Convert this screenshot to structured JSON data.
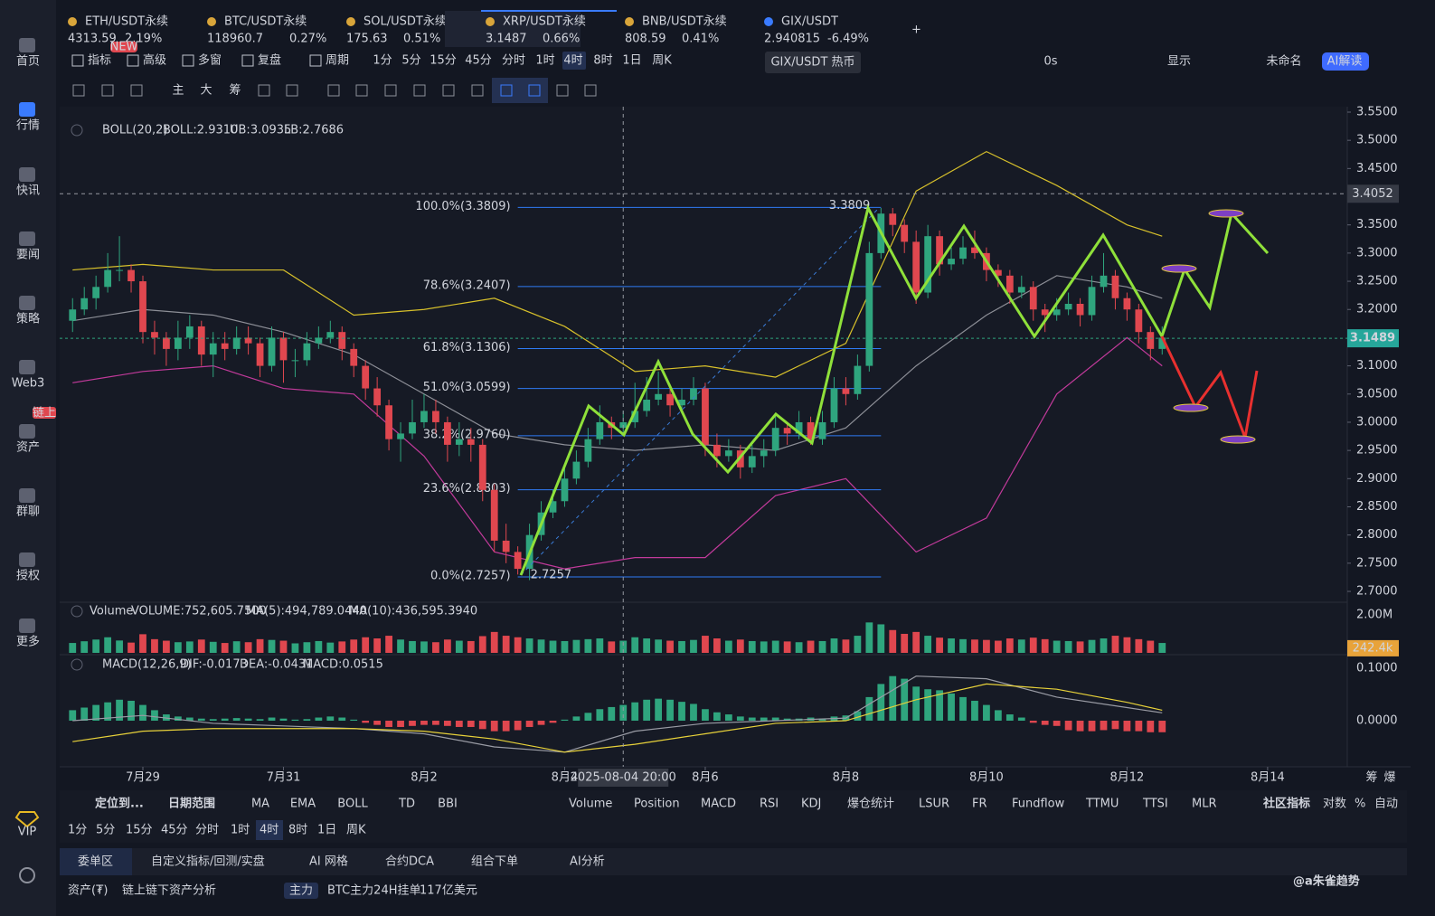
{
  "sidebar": [
    "首页",
    "行情",
    "快讯",
    "要闻",
    "策略",
    "Web3",
    "资产",
    "群聊",
    "授权",
    "更多"
  ],
  "sidebar_badge": "链上",
  "vip": "VIP",
  "new_badge": "NEW",
  "tabs": [
    {
      "symbol": "ETH/USDT永续",
      "price": "4313.59",
      "change": "2.19%",
      "color": "#2fbf71"
    },
    {
      "symbol": "BTC/USDT永续",
      "price": "118960.7",
      "change": "0.27%",
      "color": "#2fbf71"
    },
    {
      "symbol": "SOL/USDT永续",
      "price": "175.63",
      "change": "0.51%",
      "color": "#e8474f"
    },
    {
      "symbol": "XRP/USDT永续",
      "price": "3.1487",
      "change": "0.66%",
      "color": "#e8474f"
    },
    {
      "symbol": "BNB/USDT永续",
      "price": "808.59",
      "change": "0.41%",
      "color": "#e8474f"
    },
    {
      "symbol": "GIX/USDT",
      "price": "2.940815",
      "change": "-6.49%",
      "color": "#e8474f"
    }
  ],
  "toolbar": [
    "指标",
    "高级",
    "多窗",
    "复盘",
    "周期"
  ],
  "periods": [
    "1分",
    "5分",
    "15分",
    "45分",
    "分时",
    "1时",
    "4时",
    "8时",
    "1日",
    "周K"
  ],
  "active_period": "4时",
  "tooltip": "GIX/USDT 热币",
  "toolbar_right": [
    "0s",
    "显示",
    "未命名",
    "AI解读"
  ],
  "tool_labels": [
    "主",
    "大",
    "筹"
  ],
  "axis_corner": [
    "筹",
    "爆"
  ],
  "chart_data": {
    "type": "candlestick",
    "colors": {
      "up": "#2fa57e",
      "down": "#e0474f"
    },
    "boll_legend": {
      "name": "BOLL(20,2)",
      "boll": "BOLL:2.9310",
      "ub": "UB:3.0935",
      "lb": "LB:2.7686"
    },
    "volume_legend": {
      "name": "Volume",
      "volume": "VOLUME:752,605.7500",
      "ma5": "MA(5):494,789.0440",
      "ma10": "MA(10):436,595.3940"
    },
    "macd_legend": {
      "name": "MACD(12,26,9)",
      "dif": "DIF:-0.0173",
      "dea": "DEA:-0.0431",
      "macd": "MACD:0.0515"
    },
    "ylim": [
      2.6824,
      3.5596
    ],
    "yticks": [
      {
        "value": 3.55,
        "label": "3.5500"
      },
      {
        "value": 3.5,
        "label": "3.5000"
      },
      {
        "value": 3.45,
        "label": "3.4500"
      },
      {
        "value": 3.4,
        "label": "3.4000"
      },
      {
        "value": 3.35,
        "label": "3.3500"
      },
      {
        "value": 3.3,
        "label": "3.3000"
      },
      {
        "value": 3.25,
        "label": "3.2500"
      },
      {
        "value": 3.2,
        "label": "3.2000"
      },
      {
        "value": 3.15,
        "label": "3.1500"
      },
      {
        "value": 3.1,
        "label": "3.1000"
      },
      {
        "value": 3.05,
        "label": "3.0500"
      },
      {
        "value": 3,
        "label": "3.0000"
      },
      {
        "value": 2.95,
        "label": "2.9500"
      },
      {
        "value": 2.9,
        "label": "2.9000"
      },
      {
        "value": 2.85,
        "label": "2.8500"
      },
      {
        "value": 2.8,
        "label": "2.8000"
      },
      {
        "value": 2.75,
        "label": "2.7500"
      },
      {
        "value": 2.7,
        "label": "2.7000"
      }
    ],
    "xlim": [
      -1.1,
      108.8
    ],
    "xticks": [
      {
        "value": 6,
        "label": "7月29"
      },
      {
        "value": 18,
        "label": "7月31"
      },
      {
        "value": 30,
        "label": "8月2"
      },
      {
        "value": 42,
        "label": "8月4"
      },
      {
        "value": 54,
        "label": "8月6"
      },
      {
        "value": 66,
        "label": "8月8"
      },
      {
        "value": 78,
        "label": "8月10"
      },
      {
        "value": 90,
        "label": "8月12"
      },
      {
        "value": 102,
        "label": "8月14"
      }
    ],
    "last_price": {
      "value": 3.1489,
      "label": "3.1489"
    },
    "crosshair": {
      "value": 3.4052,
      "label": "3.4052",
      "x": 47,
      "x_label": "2025-08-04 20:00"
    },
    "fib": [
      {
        "value": 3.3809,
        "label": "100.0%(3.3809)"
      },
      {
        "value": 3.2407,
        "label": "78.6%(3.2407)"
      },
      {
        "value": 3.1306,
        "label": "61.8%(3.1306)"
      },
      {
        "value": 3.0599,
        "label": "51.0%(3.0599)"
      },
      {
        "value": 2.976,
        "label": "38.2%(2.9760)"
      },
      {
        "value": 2.8803,
        "label": "23.6%(2.8803)"
      },
      {
        "value": 2.7257,
        "label": "0.0%(2.7257)"
      }
    ],
    "fib_high": {
      "x": 69,
      "value": 3.3809,
      "label": "3.3809"
    },
    "fib_low": {
      "x": 38,
      "value": 2.7257,
      "label": "2.7257"
    },
    "candles": [
      [
        3.18,
        3.22,
        3.16,
        3.2
      ],
      [
        3.2,
        3.24,
        3.19,
        3.22
      ],
      [
        3.22,
        3.26,
        3.2,
        3.24
      ],
      [
        3.24,
        3.3,
        3.23,
        3.27
      ],
      [
        3.27,
        3.33,
        3.25,
        3.27
      ],
      [
        3.27,
        3.28,
        3.23,
        3.25
      ],
      [
        3.25,
        3.26,
        3.14,
        3.16
      ],
      [
        3.16,
        3.18,
        3.12,
        3.15
      ],
      [
        3.15,
        3.16,
        3.1,
        3.13
      ],
      [
        3.13,
        3.18,
        3.11,
        3.15
      ],
      [
        3.15,
        3.19,
        3.13,
        3.17
      ],
      [
        3.17,
        3.18,
        3.1,
        3.12
      ],
      [
        3.12,
        3.16,
        3.08,
        3.14
      ],
      [
        3.14,
        3.16,
        3.11,
        3.13
      ],
      [
        3.13,
        3.17,
        3.12,
        3.15
      ],
      [
        3.15,
        3.17,
        3.12,
        3.14
      ],
      [
        3.14,
        3.15,
        3.08,
        3.1
      ],
      [
        3.1,
        3.17,
        3.09,
        3.15
      ],
      [
        3.15,
        3.16,
        3.07,
        3.11
      ],
      [
        3.11,
        3.13,
        3.08,
        3.11
      ],
      [
        3.11,
        3.16,
        3.1,
        3.14
      ],
      [
        3.14,
        3.17,
        3.13,
        3.15
      ],
      [
        3.15,
        3.18,
        3.14,
        3.16
      ],
      [
        3.16,
        3.17,
        3.11,
        3.13
      ],
      [
        3.13,
        3.14,
        3.08,
        3.1
      ],
      [
        3.1,
        3.11,
        3.04,
        3.06
      ],
      [
        3.06,
        3.08,
        3.01,
        3.03
      ],
      [
        3.03,
        3.04,
        2.95,
        2.97
      ],
      [
        2.97,
        3.0,
        2.93,
        2.98
      ],
      [
        2.98,
        3.04,
        2.97,
        3.0
      ],
      [
        3.0,
        3.05,
        2.99,
        3.02
      ],
      [
        3.02,
        3.04,
        2.98,
        3.0
      ],
      [
        3.0,
        3.01,
        2.93,
        2.96
      ],
      [
        2.96,
        3.0,
        2.94,
        2.97
      ],
      [
        2.97,
        2.99,
        2.93,
        2.96
      ],
      [
        2.96,
        2.97,
        2.86,
        2.88
      ],
      [
        2.88,
        2.89,
        2.77,
        2.79
      ],
      [
        2.79,
        2.82,
        2.75,
        2.77
      ],
      [
        2.77,
        2.78,
        2.73,
        2.74
      ],
      [
        2.74,
        2.82,
        2.72,
        2.8
      ],
      [
        2.8,
        2.86,
        2.79,
        2.84
      ],
      [
        2.84,
        2.88,
        2.83,
        2.86
      ],
      [
        2.86,
        2.92,
        2.85,
        2.9
      ],
      [
        2.9,
        2.95,
        2.89,
        2.93
      ],
      [
        2.93,
        2.99,
        2.92,
        2.97
      ],
      [
        2.97,
        3.03,
        2.96,
        3.0
      ],
      [
        3.0,
        3.01,
        2.97,
        2.99
      ],
      [
        2.99,
        3.02,
        2.98,
        3.0
      ],
      [
        3.0,
        3.07,
        2.99,
        3.02
      ],
      [
        3.02,
        3.08,
        3.01,
        3.04
      ],
      [
        3.04,
        3.09,
        3.03,
        3.05
      ],
      [
        3.05,
        3.06,
        3.01,
        3.03
      ],
      [
        3.03,
        3.06,
        3.02,
        3.04
      ],
      [
        3.04,
        3.08,
        3.03,
        3.06
      ],
      [
        3.06,
        3.07,
        2.94,
        2.96
      ],
      [
        2.96,
        2.98,
        2.92,
        2.94
      ],
      [
        2.94,
        2.97,
        2.93,
        2.95
      ],
      [
        2.95,
        2.96,
        2.9,
        2.92
      ],
      [
        2.92,
        2.96,
        2.91,
        2.94
      ],
      [
        2.94,
        2.97,
        2.92,
        2.95
      ],
      [
        2.95,
        3.01,
        2.94,
        2.99
      ],
      [
        2.99,
        3.0,
        2.96,
        2.98
      ],
      [
        2.98,
        3.02,
        2.97,
        3.0
      ],
      [
        3.0,
        3.01,
        2.96,
        2.97
      ],
      [
        2.97,
        3.02,
        2.96,
        3.0
      ],
      [
        3.0,
        3.08,
        2.99,
        3.06
      ],
      [
        3.06,
        3.08,
        3.03,
        3.05
      ],
      [
        3.05,
        3.12,
        3.04,
        3.1
      ],
      [
        3.1,
        3.32,
        3.09,
        3.3
      ],
      [
        3.3,
        3.38,
        3.29,
        3.37
      ],
      [
        3.37,
        3.38,
        3.33,
        3.35
      ],
      [
        3.35,
        3.36,
        3.3,
        3.32
      ],
      [
        3.32,
        3.34,
        3.21,
        3.23
      ],
      [
        3.23,
        3.35,
        3.22,
        3.33
      ],
      [
        3.33,
        3.34,
        3.26,
        3.28
      ],
      [
        3.28,
        3.31,
        3.27,
        3.29
      ],
      [
        3.29,
        3.33,
        3.28,
        3.31
      ],
      [
        3.31,
        3.34,
        3.29,
        3.3
      ],
      [
        3.3,
        3.31,
        3.25,
        3.27
      ],
      [
        3.27,
        3.28,
        3.24,
        3.26
      ],
      [
        3.26,
        3.27,
        3.21,
        3.23
      ],
      [
        3.23,
        3.26,
        3.22,
        3.24
      ],
      [
        3.24,
        3.25,
        3.18,
        3.2
      ],
      [
        3.2,
        3.21,
        3.16,
        3.19
      ],
      [
        3.19,
        3.22,
        3.18,
        3.2
      ],
      [
        3.2,
        3.23,
        3.19,
        3.21
      ],
      [
        3.21,
        3.22,
        3.17,
        3.19
      ],
      [
        3.19,
        3.26,
        3.18,
        3.24
      ],
      [
        3.24,
        3.3,
        3.23,
        3.26
      ],
      [
        3.26,
        3.27,
        3.2,
        3.22
      ],
      [
        3.22,
        3.23,
        3.18,
        3.2
      ],
      [
        3.2,
        3.21,
        3.14,
        3.16
      ],
      [
        3.16,
        3.17,
        3.11,
        3.13
      ],
      [
        3.13,
        3.17,
        3.12,
        3.15
      ]
    ],
    "boll": {
      "x": [
        0,
        6,
        12,
        18,
        24,
        30,
        36,
        42,
        48,
        54,
        60,
        66,
        72,
        78,
        84,
        90,
        93
      ],
      "upper": [
        3.27,
        3.28,
        3.27,
        3.27,
        3.19,
        3.2,
        3.22,
        3.17,
        3.09,
        3.1,
        3.08,
        3.14,
        3.41,
        3.48,
        3.42,
        3.35,
        3.33
      ],
      "mid": [
        3.18,
        3.2,
        3.19,
        3.16,
        3.12,
        3.05,
        2.98,
        2.96,
        2.95,
        2.96,
        2.95,
        2.99,
        3.1,
        3.19,
        3.26,
        3.24,
        3.22
      ],
      "lower": [
        3.07,
        3.09,
        3.1,
        3.06,
        3.05,
        2.94,
        2.77,
        2.74,
        2.76,
        2.76,
        2.87,
        2.9,
        2.77,
        2.83,
        3.05,
        3.15,
        3.1
      ]
    },
    "volume": {
      "ylim": [
        0,
        2615
      ],
      "yticks": [
        {
          "value": 2000,
          "label": "2.00M"
        }
      ],
      "last": {
        "value": 242.4,
        "label": "242.4k"
      },
      "values": [
        520,
        610,
        700,
        820,
        650,
        540,
        980,
        720,
        640,
        560,
        600,
        700,
        580,
        520,
        610,
        560,
        720,
        680,
        640,
        500,
        560,
        620,
        540,
        600,
        700,
        820,
        760,
        900,
        700,
        620,
        600,
        560,
        700,
        640,
        620,
        880,
        1100,
        900,
        820,
        760,
        700,
        640,
        620,
        680,
        720,
        760,
        600,
        640,
        820,
        760,
        700,
        640,
        620,
        680,
        900,
        760,
        640,
        700,
        620,
        600,
        640,
        600,
        560,
        640,
        620,
        760,
        700,
        900,
        1600,
        1500,
        1200,
        1000,
        1100,
        900,
        800,
        760,
        720,
        700,
        680,
        640,
        760,
        700,
        800,
        720,
        640,
        620,
        600,
        680,
        760,
        900,
        820,
        720,
        640,
        520
      ]
    },
    "macd": {
      "ylim": [
        -0.0879,
        0.1207
      ],
      "yticks": [
        {
          "value": 0.1,
          "label": "0.1000"
        },
        {
          "value": 0,
          "label": "0.0000"
        }
      ],
      "hist": [
        0.02,
        0.025,
        0.03,
        0.035,
        0.04,
        0.038,
        0.03,
        0.02,
        0.012,
        0.008,
        0.006,
        0.004,
        0.003,
        0.004,
        0.005,
        0.004,
        0.003,
        0.006,
        0.004,
        0.002,
        0.003,
        0.006,
        0.008,
        0.006,
        0.002,
        -0.004,
        -0.008,
        -0.012,
        -0.012,
        -0.01,
        -0.008,
        -0.008,
        -0.01,
        -0.012,
        -0.012,
        -0.016,
        -0.02,
        -0.02,
        -0.018,
        -0.012,
        -0.008,
        -0.004,
        0.002,
        0.008,
        0.015,
        0.022,
        0.026,
        0.03,
        0.035,
        0.04,
        0.042,
        0.04,
        0.036,
        0.032,
        0.022,
        0.016,
        0.012,
        0.008,
        0.006,
        0.006,
        0.006,
        0.004,
        0.004,
        0.006,
        0.004,
        0.008,
        0.01,
        0.018,
        0.045,
        0.07,
        0.085,
        0.08,
        0.065,
        0.06,
        0.058,
        0.052,
        0.045,
        0.038,
        0.03,
        0.02,
        0.012,
        0.006,
        -0.004,
        -0.008,
        -0.01,
        -0.018,
        -0.02,
        -0.02,
        -0.018,
        -0.016,
        -0.02,
        -0.02,
        -0.022,
        -0.022
      ],
      "dif": [
        0.0,
        0.01,
        -0.005,
        -0.01,
        -0.015,
        -0.025,
        -0.05,
        -0.06,
        -0.02,
        -0.005,
        0.0,
        0.005,
        0.085,
        0.08,
        0.045,
        0.025,
        0.015
      ],
      "dea": [
        -0.04,
        -0.02,
        -0.015,
        -0.015,
        -0.015,
        -0.02,
        -0.035,
        -0.06,
        -0.045,
        -0.025,
        -0.005,
        0.0,
        0.04,
        0.07,
        0.06,
        0.035,
        0.02
      ]
    }
  },
  "indicator_bar": {
    "left": [
      "定位到...",
      "日期范围"
    ],
    "main": [
      "MA",
      "EMA",
      "BOLL",
      "TD",
      "BBI"
    ],
    "sub": [
      "Volume",
      "Position",
      "MACD",
      "RSI",
      "KDJ",
      "爆仓统计",
      "LSUR",
      "FR",
      "Fundflow",
      "TTMU",
      "TTSI",
      "MLR"
    ],
    "right": [
      "社区指标",
      "对数",
      "%",
      "自动"
    ]
  },
  "bottom_periods": [
    "1分",
    "5分",
    "15分",
    "45分",
    "分时",
    "1时",
    "4时",
    "8时",
    "1日",
    "周K"
  ],
  "bottom_tabs": [
    "委单区",
    "自定义指标/回测/实盘",
    "AI 网格",
    "合约DCA",
    "组合下单",
    "AI分析"
  ],
  "status": {
    "asset": "资产(₮)",
    "analysis": "链上链下资产分析",
    "tag": "主力",
    "text": "BTC主力24H挂单",
    "amount": "117亿美元"
  },
  "watermark": "@a朱雀趋势"
}
